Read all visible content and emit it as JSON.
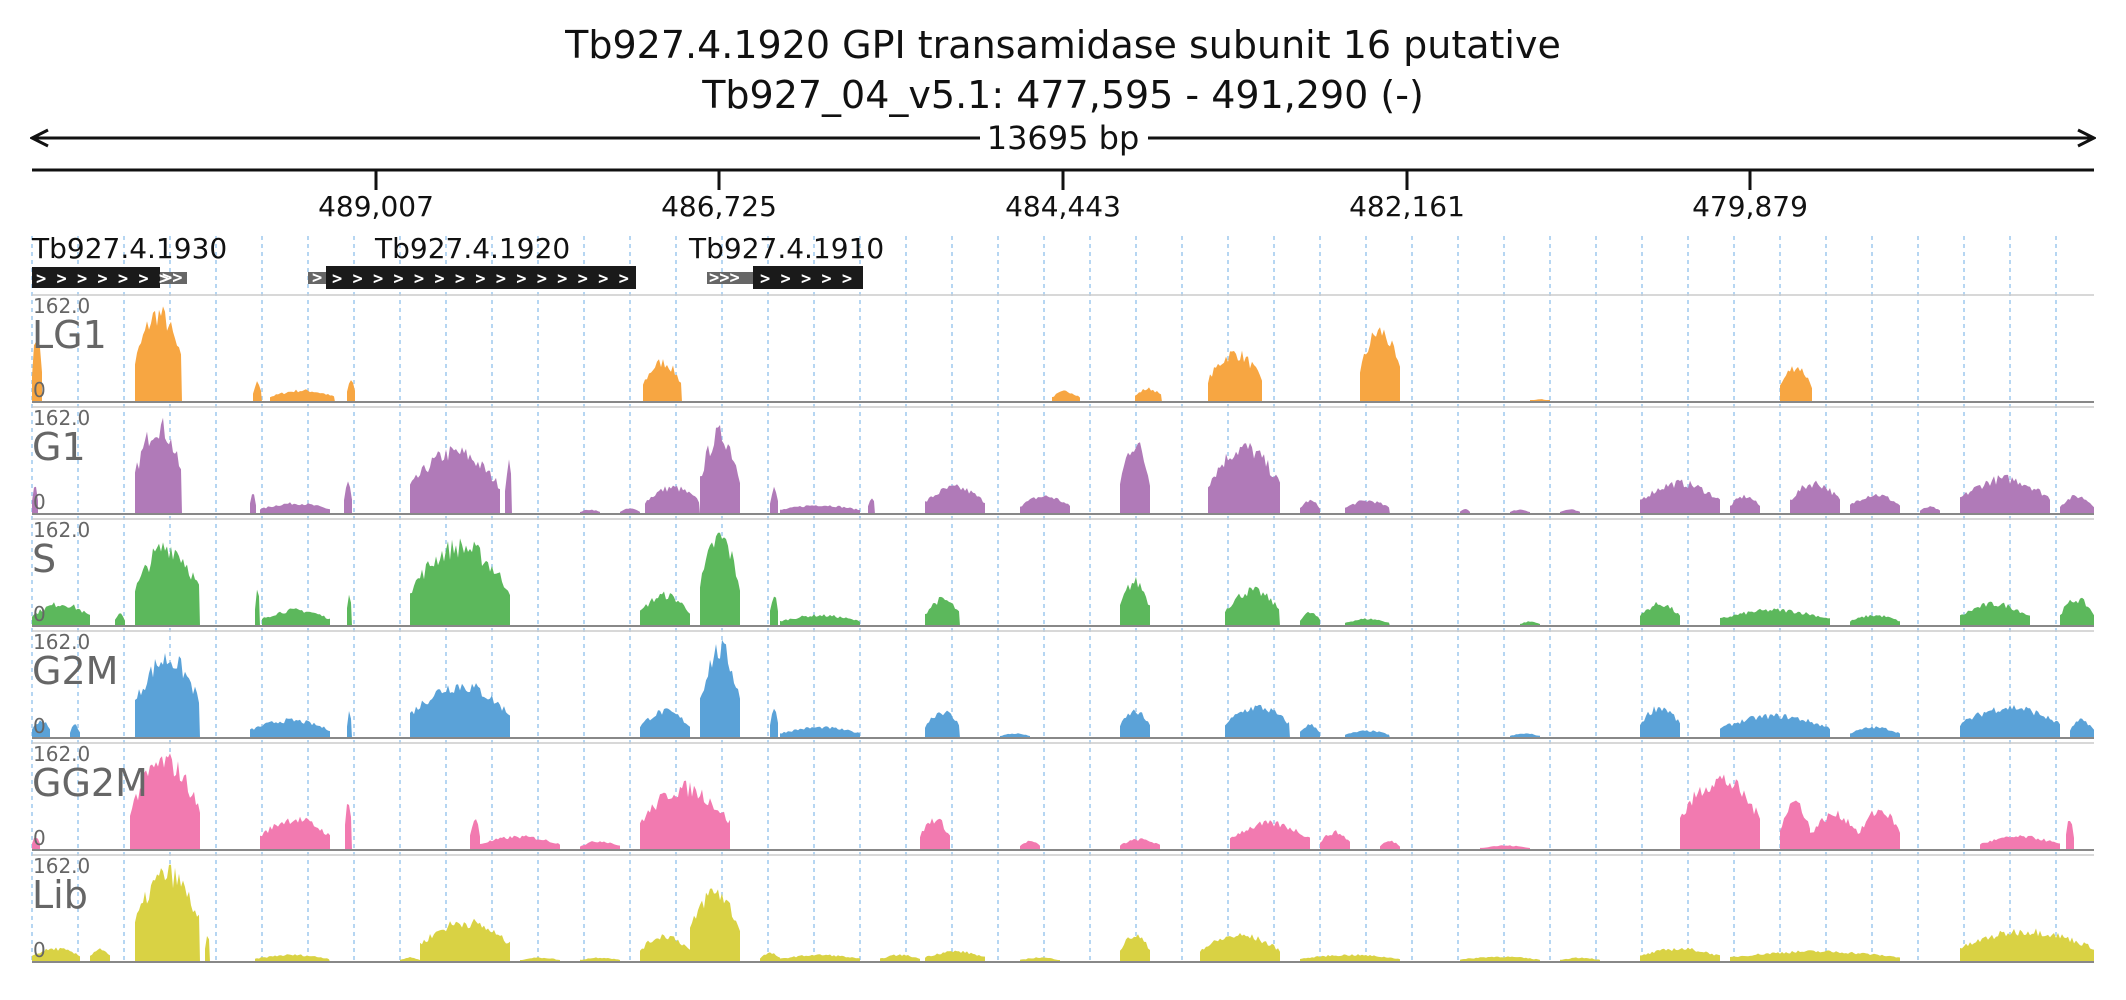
{
  "title": {
    "line1": "Tb927.4.1920  GPI transamidase subunit 16  putative",
    "line2": "Tb927_04_v5.1: 477,595 - 491,290 (-)"
  },
  "scale": {
    "span_label": "13695 bp",
    "ticks": [
      "489,007",
      "486,725",
      "484,443",
      "482,161",
      "479,879"
    ]
  },
  "genes": [
    {
      "label": "Tb927.4.1930",
      "strand": "+"
    },
    {
      "label": "Tb927.4.1920",
      "strand": "+"
    },
    {
      "label": "Tb927.4.1910",
      "strand": "+"
    }
  ],
  "colors": {
    "LG1": "#f7a642",
    "G1": "#b07ab8",
    "S": "#5cb85c",
    "G2M": "#5aa2d8",
    "GG2M": "#f27ab0",
    "Lib": "#d9d244",
    "grid": "#9ec9ee",
    "gene": "#1a1a1a"
  },
  "tracks": [
    {
      "name": "LG1",
      "max_label": "162.0",
      "min_label": "0"
    },
    {
      "name": "G1",
      "max_label": "162.0",
      "min_label": "0"
    },
    {
      "name": "S",
      "max_label": "162.0",
      "min_label": "0"
    },
    {
      "name": "G2M",
      "max_label": "162.0",
      "min_label": "0"
    },
    {
      "name": "GG2M",
      "max_label": "162.0",
      "min_label": "0"
    },
    {
      "name": "Lib",
      "max_label": "162.0",
      "min_label": "0"
    }
  ]
}
